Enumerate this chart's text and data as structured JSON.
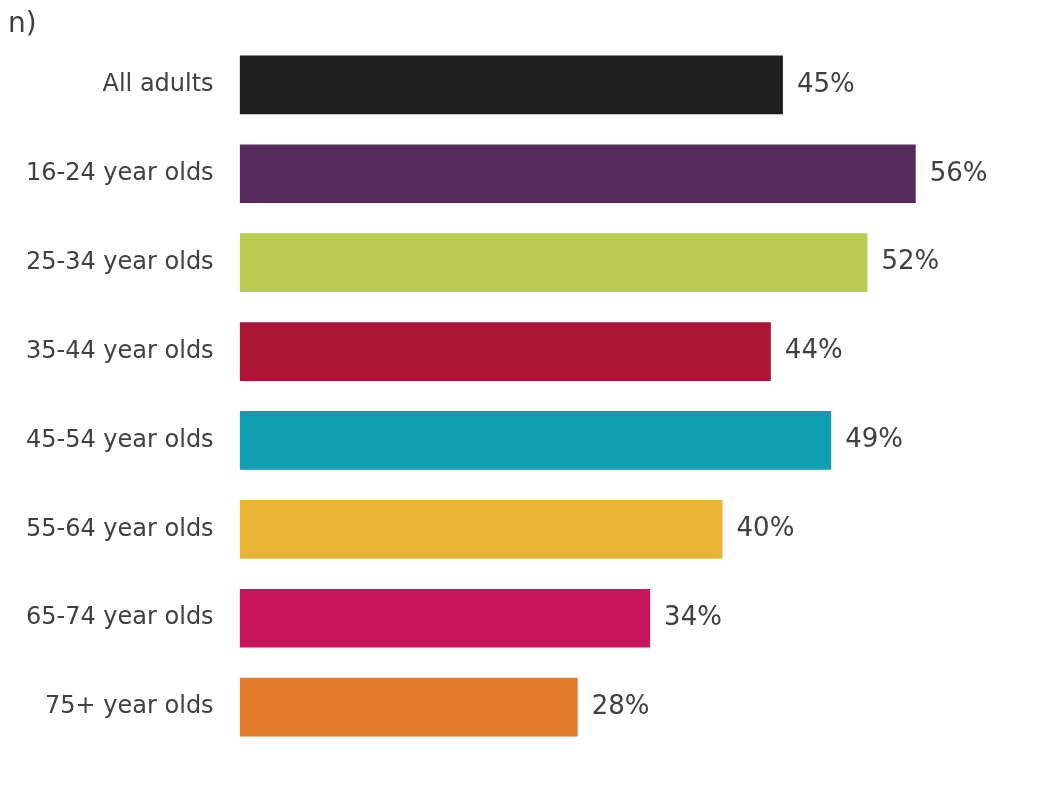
{
  "chart_data": {
    "type": "bar",
    "orientation": "horizontal",
    "categories": [
      "All adults",
      "16-24 year olds",
      "25-34 year olds",
      "35-44 year olds",
      "45-54 year olds",
      "55-64 year olds",
      "65-74 year olds",
      "75+ year olds"
    ],
    "values": [
      45,
      56,
      52,
      44,
      49,
      40,
      34,
      28
    ],
    "colors": [
      "#1e1e1e",
      "#542a5a",
      "#b8cb50",
      "#ab1538",
      "#109eb3",
      "#e8b535",
      "#c8155c",
      "#e27b2a"
    ],
    "value_labels": [
      "45%",
      "56%",
      "52%",
      "44%",
      "49%",
      "40%",
      "34%",
      "28%"
    ],
    "annotations": [
      "n)"
    ]
  }
}
